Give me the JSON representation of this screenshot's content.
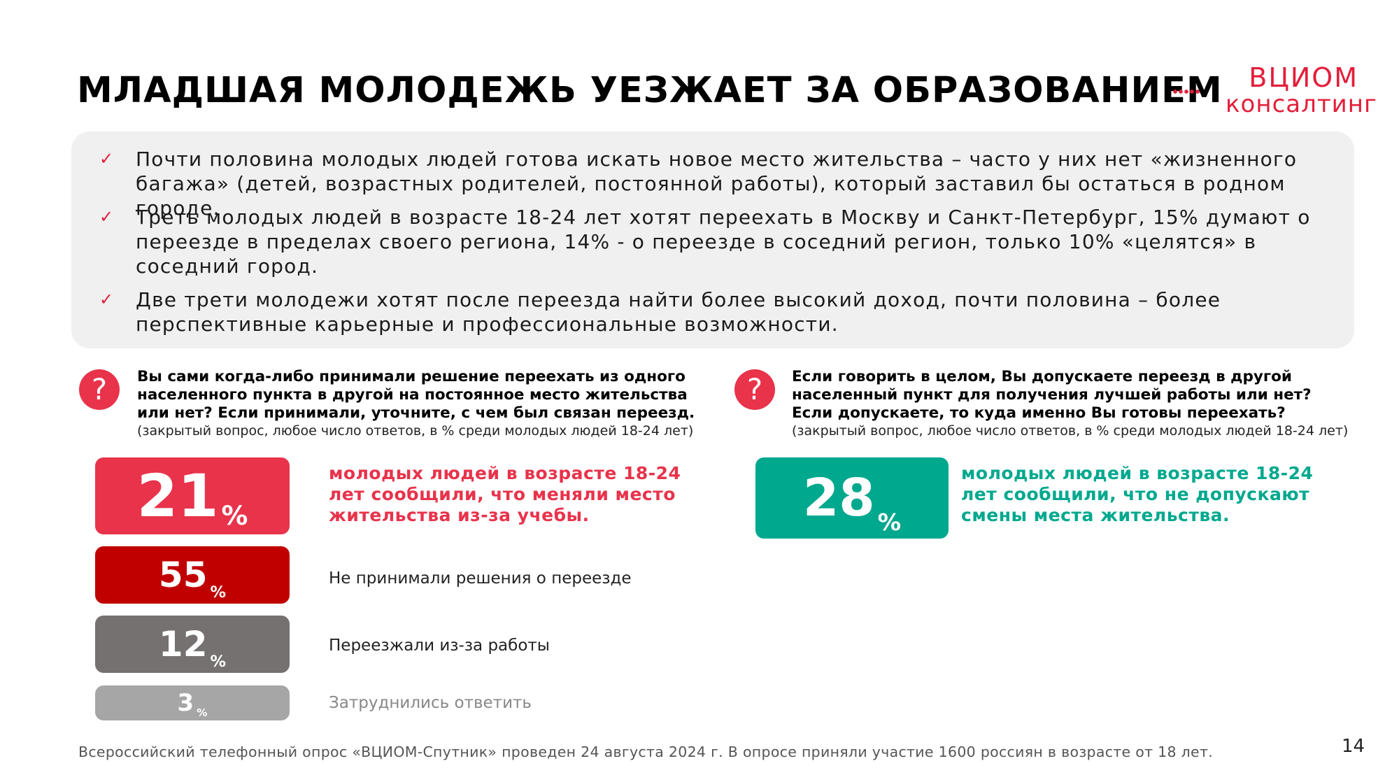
{
  "header": {
    "title": "МЛАДШАЯ МОЛОДЕЖЬ УЕЗЖАЕТ ЗА ОБРАЗОВАНИЕМ",
    "logo_line1": "ВЦИОМ",
    "logo_line2": "консалтинг"
  },
  "summary": {
    "check": "✓",
    "bullets": [
      "Почти половина молодых людей готова искать новое место жительства – часто у них нет «жизненного багажа» (детей, возрастных родителей, постоянной работы), который заставил бы остаться в родном городе.",
      "Треть молодых людей в возрасте 18-24 лет хотят переехать в Москву и Санкт-Петербург, 15% думают о переезде в пределах своего региона, 14% - о переезде в соседний регион, только 10% «целятся» в соседний город.",
      "Две трети молодежи хотят после переезда найти более высокий доход, почти половина – более перспективные карьерные и профессиональные возможности."
    ]
  },
  "left": {
    "icon": "?",
    "question": "Вы сами когда-либо принимали решение переехать из одного населенного пункта в другой на постоянное место жительства или нет? Если принимали, уточните, с чем был связан переезд.",
    "note": "(закрытый вопрос, любое число ответов, в % среди молодых людей 18-24 лет)",
    "items": [
      {
        "value": "21",
        "unit": "%",
        "text": "молодых людей в возрасте 18-24 лет сообщили, что меняли место жительства из-за учебы.",
        "color": "#e8334b"
      },
      {
        "value": "55",
        "unit": "%",
        "text": "Не принимали решения о переезде",
        "color": "#c00000"
      },
      {
        "value": "12",
        "unit": "%",
        "text": "Переезжали из-за работы",
        "color": "#767171"
      },
      {
        "value": "3",
        "unit": "%",
        "text": "Затруднились ответить",
        "color": "#a6a6a6"
      }
    ]
  },
  "right": {
    "icon": "?",
    "question": "Если говорить в целом, Вы допускаете переезд в другой населенный пункт для получения лучшей работы или нет? Если допускаете, то куда именно Вы готовы переехать?",
    "note": "(закрытый вопрос, любое число ответов, в % среди молодых людей 18-24 лет)",
    "item": {
      "value": "28",
      "unit": "%",
      "text": "молодых людей в возрасте 18-24 лет сообщили, что не допускают смены места жительства.",
      "color": "#00a88e"
    }
  },
  "footer": {
    "source": "Всероссийский телефонный опрос «ВЦИОМ-Спутник» проведен 24 августа 2024 г. В опросе приняли участие 1600 россиян в возрасте от 18 лет.",
    "page": "14"
  }
}
